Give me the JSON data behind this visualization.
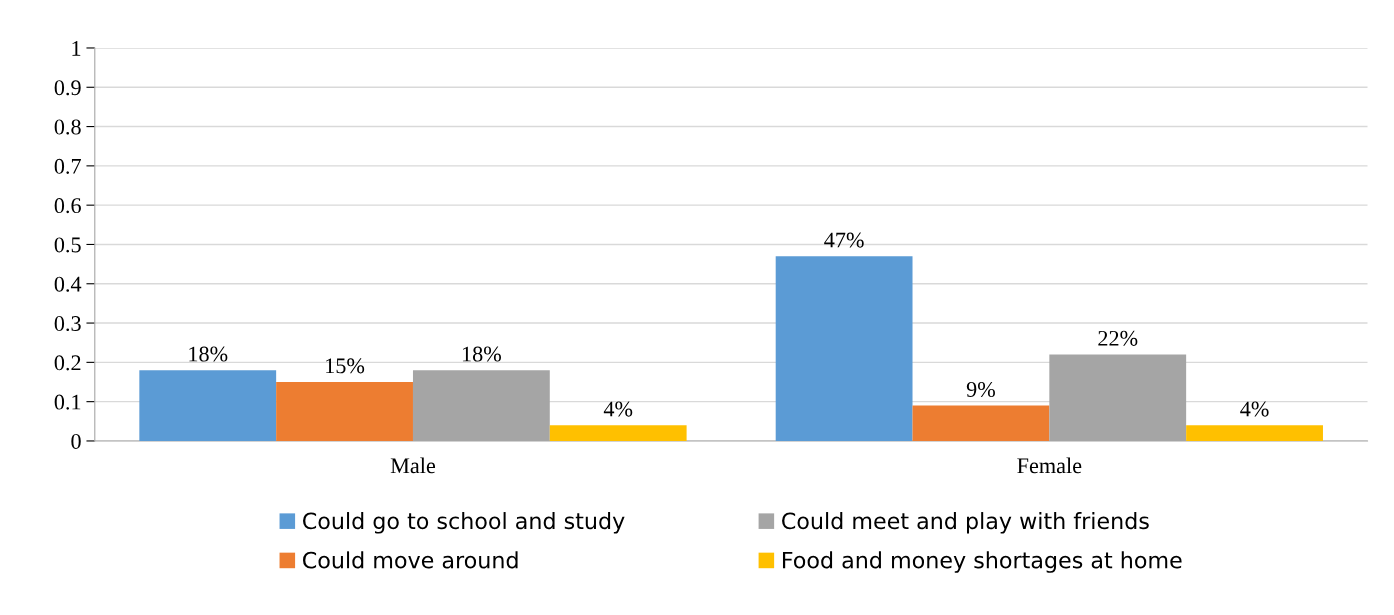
{
  "chart_data": {
    "type": "bar",
    "categories": [
      "Male",
      "Female"
    ],
    "series": [
      {
        "name": "Could go to school and study",
        "color": "#5b9bd5",
        "values": [
          0.18,
          0.47
        ],
        "value_labels": [
          "18%",
          "47%"
        ]
      },
      {
        "name": "Could move around",
        "color": "#ed7d31",
        "values": [
          0.15,
          0.09
        ],
        "value_labels": [
          "15%",
          "9%"
        ]
      },
      {
        "name": "Could meet and play with friends",
        "color": "#a5a5a5",
        "values": [
          0.18,
          0.22
        ],
        "value_labels": [
          "18%",
          "22%"
        ]
      },
      {
        "name": "Food and money shortages at home",
        "color": "#ffc000",
        "values": [
          0.04,
          0.04
        ],
        "value_labels": [
          "4%",
          "4%"
        ]
      }
    ],
    "ylim": [
      0,
      1
    ],
    "yticks": [
      0,
      0.1,
      0.2,
      0.3,
      0.4,
      0.5,
      0.6,
      0.7,
      0.8,
      0.9,
      1
    ],
    "grid": "y",
    "legend": "bottom"
  }
}
